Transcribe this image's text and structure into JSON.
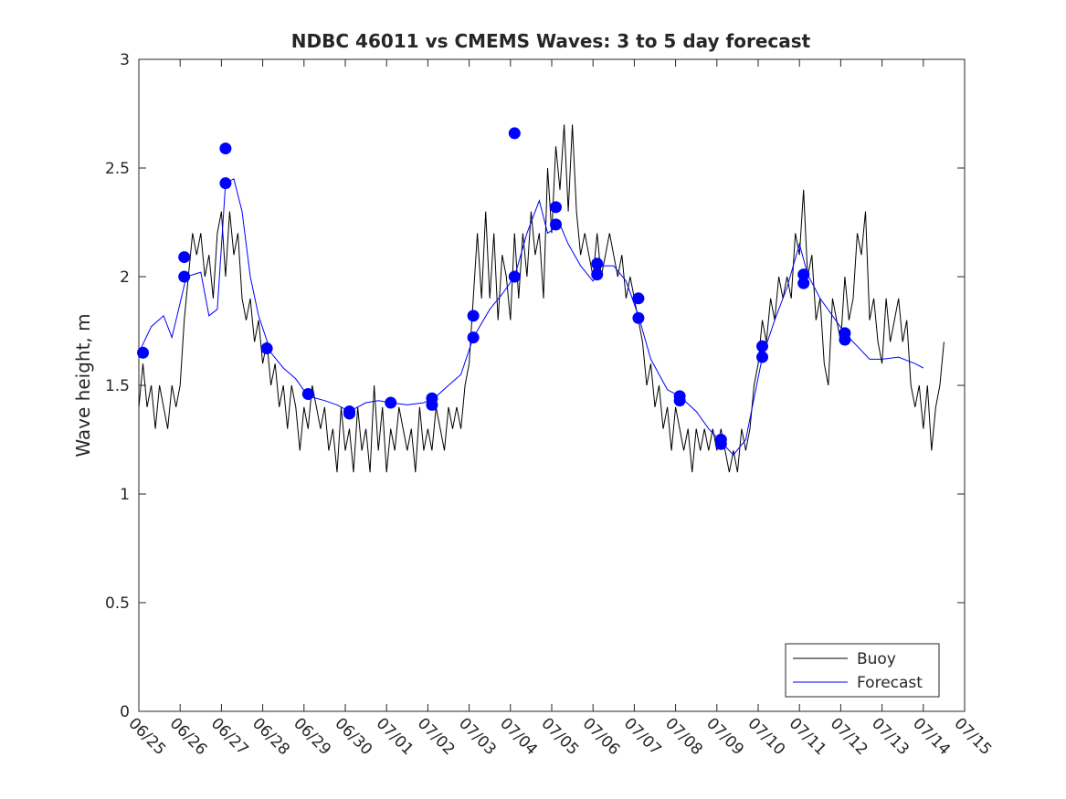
{
  "chart_data": {
    "type": "line",
    "title": "NDBC 46011 vs CMEMS Waves: 3 to 5 day forecast",
    "xlabel": "",
    "ylabel": "Wave height, m",
    "x_tick_labels": [
      "06/25",
      "06/26",
      "06/27",
      "06/28",
      "06/29",
      "06/30",
      "07/01",
      "07/02",
      "07/03",
      "07/04",
      "07/05",
      "07/06",
      "07/07",
      "07/08",
      "07/09",
      "07/10",
      "07/11",
      "07/12",
      "07/13",
      "07/14",
      "07/15"
    ],
    "x_tick_days": [
      0,
      1,
      2,
      3,
      4,
      5,
      6,
      7,
      8,
      9,
      10,
      11,
      12,
      13,
      14,
      15,
      16,
      17,
      18,
      19,
      20
    ],
    "y_tick_labels": [
      "0",
      "0.5",
      "1",
      "1.5",
      "2",
      "2.5",
      "3"
    ],
    "xlim_days": [
      0,
      20
    ],
    "ylim": [
      0,
      3
    ],
    "grid": false,
    "legend_position": "bottom-right",
    "legend": [
      {
        "label": "Buoy",
        "color": "#000000"
      },
      {
        "label": "Forecast",
        "color": "#0000ff"
      }
    ],
    "series": [
      {
        "name": "Buoy",
        "color": "#000000",
        "points": [
          [
            0,
            1.4
          ],
          [
            0.1,
            1.6
          ],
          [
            0.2,
            1.4
          ],
          [
            0.3,
            1.5
          ],
          [
            0.4,
            1.3
          ],
          [
            0.5,
            1.5
          ],
          [
            0.6,
            1.4
          ],
          [
            0.7,
            1.3
          ],
          [
            0.8,
            1.5
          ],
          [
            0.9,
            1.4
          ],
          [
            1.0,
            1.5
          ],
          [
            1.1,
            1.8
          ],
          [
            1.2,
            2.0
          ],
          [
            1.3,
            2.2
          ],
          [
            1.4,
            2.1
          ],
          [
            1.5,
            2.2
          ],
          [
            1.6,
            2.0
          ],
          [
            1.7,
            2.1
          ],
          [
            1.8,
            1.9
          ],
          [
            1.9,
            2.2
          ],
          [
            2.0,
            2.3
          ],
          [
            2.1,
            2.0
          ],
          [
            2.2,
            2.3
          ],
          [
            2.3,
            2.1
          ],
          [
            2.4,
            2.2
          ],
          [
            2.5,
            1.9
          ],
          [
            2.6,
            1.8
          ],
          [
            2.7,
            1.9
          ],
          [
            2.8,
            1.7
          ],
          [
            2.9,
            1.8
          ],
          [
            3.0,
            1.6
          ],
          [
            3.1,
            1.7
          ],
          [
            3.2,
            1.5
          ],
          [
            3.3,
            1.6
          ],
          [
            3.4,
            1.4
          ],
          [
            3.5,
            1.5
          ],
          [
            3.6,
            1.3
          ],
          [
            3.7,
            1.5
          ],
          [
            3.8,
            1.4
          ],
          [
            3.9,
            1.2
          ],
          [
            4.0,
            1.4
          ],
          [
            4.1,
            1.3
          ],
          [
            4.2,
            1.5
          ],
          [
            4.3,
            1.4
          ],
          [
            4.4,
            1.3
          ],
          [
            4.5,
            1.4
          ],
          [
            4.6,
            1.2
          ],
          [
            4.7,
            1.3
          ],
          [
            4.8,
            1.1
          ],
          [
            4.9,
            1.4
          ],
          [
            5.0,
            1.2
          ],
          [
            5.1,
            1.3
          ],
          [
            5.2,
            1.1
          ],
          [
            5.3,
            1.4
          ],
          [
            5.4,
            1.2
          ],
          [
            5.5,
            1.3
          ],
          [
            5.6,
            1.1
          ],
          [
            5.7,
            1.5
          ],
          [
            5.8,
            1.2
          ],
          [
            5.9,
            1.4
          ],
          [
            6.0,
            1.1
          ],
          [
            6.1,
            1.3
          ],
          [
            6.2,
            1.2
          ],
          [
            6.3,
            1.4
          ],
          [
            6.4,
            1.3
          ],
          [
            6.5,
            1.2
          ],
          [
            6.6,
            1.3
          ],
          [
            6.7,
            1.1
          ],
          [
            6.8,
            1.4
          ],
          [
            6.9,
            1.2
          ],
          [
            7.0,
            1.3
          ],
          [
            7.1,
            1.2
          ],
          [
            7.2,
            1.4
          ],
          [
            7.3,
            1.3
          ],
          [
            7.4,
            1.2
          ],
          [
            7.5,
            1.4
          ],
          [
            7.6,
            1.3
          ],
          [
            7.7,
            1.4
          ],
          [
            7.8,
            1.3
          ],
          [
            7.9,
            1.5
          ],
          [
            8.0,
            1.6
          ],
          [
            8.1,
            1.9
          ],
          [
            8.2,
            2.2
          ],
          [
            8.3,
            1.9
          ],
          [
            8.4,
            2.3
          ],
          [
            8.5,
            1.9
          ],
          [
            8.6,
            2.2
          ],
          [
            8.7,
            1.8
          ],
          [
            8.8,
            2.1
          ],
          [
            8.9,
            2.0
          ],
          [
            9.0,
            1.8
          ],
          [
            9.1,
            2.2
          ],
          [
            9.2,
            1.9
          ],
          [
            9.3,
            2.2
          ],
          [
            9.4,
            2.0
          ],
          [
            9.5,
            2.3
          ],
          [
            9.6,
            2.1
          ],
          [
            9.7,
            2.2
          ],
          [
            9.8,
            1.9
          ],
          [
            9.9,
            2.5
          ],
          [
            10.0,
            2.2
          ],
          [
            10.1,
            2.6
          ],
          [
            10.2,
            2.4
          ],
          [
            10.3,
            2.7
          ],
          [
            10.4,
            2.3
          ],
          [
            10.5,
            2.7
          ],
          [
            10.6,
            2.3
          ],
          [
            10.7,
            2.1
          ],
          [
            10.8,
            2.2
          ],
          [
            10.9,
            2.1
          ],
          [
            11.0,
            2.0
          ],
          [
            11.1,
            2.2
          ],
          [
            11.2,
            2.0
          ],
          [
            11.3,
            2.1
          ],
          [
            11.4,
            2.2
          ],
          [
            11.5,
            2.1
          ],
          [
            11.6,
            2.0
          ],
          [
            11.7,
            2.1
          ],
          [
            11.8,
            1.9
          ],
          [
            11.9,
            2.0
          ],
          [
            12.0,
            1.9
          ],
          [
            12.1,
            1.8
          ],
          [
            12.2,
            1.7
          ],
          [
            12.3,
            1.5
          ],
          [
            12.4,
            1.6
          ],
          [
            12.5,
            1.4
          ],
          [
            12.6,
            1.5
          ],
          [
            12.7,
            1.3
          ],
          [
            12.8,
            1.4
          ],
          [
            12.9,
            1.2
          ],
          [
            13.0,
            1.4
          ],
          [
            13.1,
            1.3
          ],
          [
            13.2,
            1.2
          ],
          [
            13.3,
            1.3
          ],
          [
            13.4,
            1.1
          ],
          [
            13.5,
            1.3
          ],
          [
            13.6,
            1.2
          ],
          [
            13.7,
            1.3
          ],
          [
            13.8,
            1.2
          ],
          [
            13.9,
            1.3
          ],
          [
            14.0,
            1.2
          ],
          [
            14.1,
            1.3
          ],
          [
            14.2,
            1.2
          ],
          [
            14.3,
            1.1
          ],
          [
            14.4,
            1.2
          ],
          [
            14.5,
            1.1
          ],
          [
            14.6,
            1.3
          ],
          [
            14.7,
            1.2
          ],
          [
            14.8,
            1.3
          ],
          [
            14.9,
            1.5
          ],
          [
            15.0,
            1.6
          ],
          [
            15.1,
            1.8
          ],
          [
            15.2,
            1.7
          ],
          [
            15.3,
            1.9
          ],
          [
            15.4,
            1.8
          ],
          [
            15.5,
            2.0
          ],
          [
            15.6,
            1.9
          ],
          [
            15.7,
            2.0
          ],
          [
            15.8,
            1.9
          ],
          [
            15.9,
            2.2
          ],
          [
            16.0,
            2.1
          ],
          [
            16.1,
            2.4
          ],
          [
            16.2,
            2.0
          ],
          [
            16.3,
            2.1
          ],
          [
            16.4,
            1.8
          ],
          [
            16.5,
            1.9
          ],
          [
            16.6,
            1.6
          ],
          [
            16.7,
            1.5
          ],
          [
            16.8,
            1.9
          ],
          [
            16.9,
            1.8
          ],
          [
            17.0,
            1.7
          ],
          [
            17.1,
            2.0
          ],
          [
            17.2,
            1.8
          ],
          [
            17.3,
            1.9
          ],
          [
            17.4,
            2.2
          ],
          [
            17.5,
            2.1
          ],
          [
            17.6,
            2.3
          ],
          [
            17.7,
            1.8
          ],
          [
            17.8,
            1.9
          ],
          [
            17.9,
            1.7
          ],
          [
            18.0,
            1.6
          ],
          [
            18.1,
            1.9
          ],
          [
            18.2,
            1.7
          ],
          [
            18.3,
            1.8
          ],
          [
            18.4,
            1.9
          ],
          [
            18.5,
            1.7
          ],
          [
            18.6,
            1.8
          ],
          [
            18.7,
            1.5
          ],
          [
            18.8,
            1.4
          ],
          [
            18.9,
            1.5
          ],
          [
            19.0,
            1.3
          ],
          [
            19.1,
            1.5
          ],
          [
            19.2,
            1.2
          ],
          [
            19.3,
            1.4
          ],
          [
            19.4,
            1.5
          ],
          [
            19.5,
            1.7
          ]
        ]
      },
      {
        "name": "Forecast",
        "color": "#0000ff",
        "points": [
          [
            0,
            1.65
          ],
          [
            0.3,
            1.77
          ],
          [
            0.6,
            1.82
          ],
          [
            0.8,
            1.72
          ],
          [
            1.0,
            1.88
          ],
          [
            1.15,
            2.0
          ],
          [
            1.5,
            2.02
          ],
          [
            1.7,
            1.82
          ],
          [
            1.9,
            1.85
          ],
          [
            2.1,
            2.43
          ],
          [
            2.3,
            2.45
          ],
          [
            2.5,
            2.3
          ],
          [
            2.7,
            2.0
          ],
          [
            2.9,
            1.82
          ],
          [
            3.2,
            1.65
          ],
          [
            3.5,
            1.58
          ],
          [
            3.8,
            1.53
          ],
          [
            4.1,
            1.45
          ],
          [
            4.5,
            1.43
          ],
          [
            4.8,
            1.41
          ],
          [
            5.1,
            1.38
          ],
          [
            5.5,
            1.42
          ],
          [
            5.8,
            1.43
          ],
          [
            6.1,
            1.42
          ],
          [
            6.5,
            1.41
          ],
          [
            6.9,
            1.42
          ],
          [
            7.15,
            1.44
          ],
          [
            7.5,
            1.5
          ],
          [
            7.8,
            1.55
          ],
          [
            8.1,
            1.72
          ],
          [
            8.5,
            1.85
          ],
          [
            8.8,
            1.92
          ],
          [
            9.1,
            2.0
          ],
          [
            9.4,
            2.2
          ],
          [
            9.7,
            2.35
          ],
          [
            9.9,
            2.2
          ],
          [
            10.2,
            2.24
          ],
          [
            10.4,
            2.15
          ],
          [
            10.7,
            2.05
          ],
          [
            11.0,
            1.98
          ],
          [
            11.2,
            2.05
          ],
          [
            11.5,
            2.05
          ],
          [
            11.8,
            1.98
          ],
          [
            12.1,
            1.82
          ],
          [
            12.4,
            1.62
          ],
          [
            12.8,
            1.48
          ],
          [
            13.1,
            1.45
          ],
          [
            13.5,
            1.38
          ],
          [
            13.8,
            1.3
          ],
          [
            14.1,
            1.24
          ],
          [
            14.4,
            1.18
          ],
          [
            14.7,
            1.25
          ],
          [
            15.1,
            1.63
          ],
          [
            15.4,
            1.8
          ],
          [
            15.7,
            1.95
          ],
          [
            16.0,
            2.15
          ],
          [
            16.2,
            2.01
          ],
          [
            16.5,
            1.9
          ],
          [
            16.8,
            1.82
          ],
          [
            17.1,
            1.74
          ],
          [
            17.4,
            1.68
          ],
          [
            17.7,
            1.62
          ],
          [
            18.0,
            1.62
          ],
          [
            18.4,
            1.63
          ],
          [
            18.8,
            1.6
          ],
          [
            19.0,
            1.58
          ]
        ]
      }
    ],
    "forecast_markers": [
      [
        0.1,
        1.65
      ],
      [
        1.1,
        2.09
      ],
      [
        1.1,
        2.0
      ],
      [
        2.1,
        2.59
      ],
      [
        2.1,
        2.43
      ],
      [
        3.1,
        1.67
      ],
      [
        4.1,
        1.46
      ],
      [
        5.1,
        1.37
      ],
      [
        5.1,
        1.38
      ],
      [
        6.1,
        1.42
      ],
      [
        7.1,
        1.44
      ],
      [
        7.1,
        1.41
      ],
      [
        8.1,
        1.82
      ],
      [
        8.1,
        1.72
      ],
      [
        9.1,
        2.66
      ],
      [
        9.1,
        2.0
      ],
      [
        10.1,
        2.32
      ],
      [
        10.1,
        2.24
      ],
      [
        11.1,
        2.06
      ],
      [
        11.1,
        2.01
      ],
      [
        12.1,
        1.9
      ],
      [
        12.1,
        1.81
      ],
      [
        13.1,
        1.45
      ],
      [
        13.1,
        1.43
      ],
      [
        14.1,
        1.25
      ],
      [
        14.1,
        1.23
      ],
      [
        15.1,
        1.68
      ],
      [
        15.1,
        1.63
      ],
      [
        16.1,
        2.01
      ],
      [
        16.1,
        1.97
      ],
      [
        17.1,
        1.74
      ],
      [
        17.1,
        1.71
      ]
    ]
  }
}
